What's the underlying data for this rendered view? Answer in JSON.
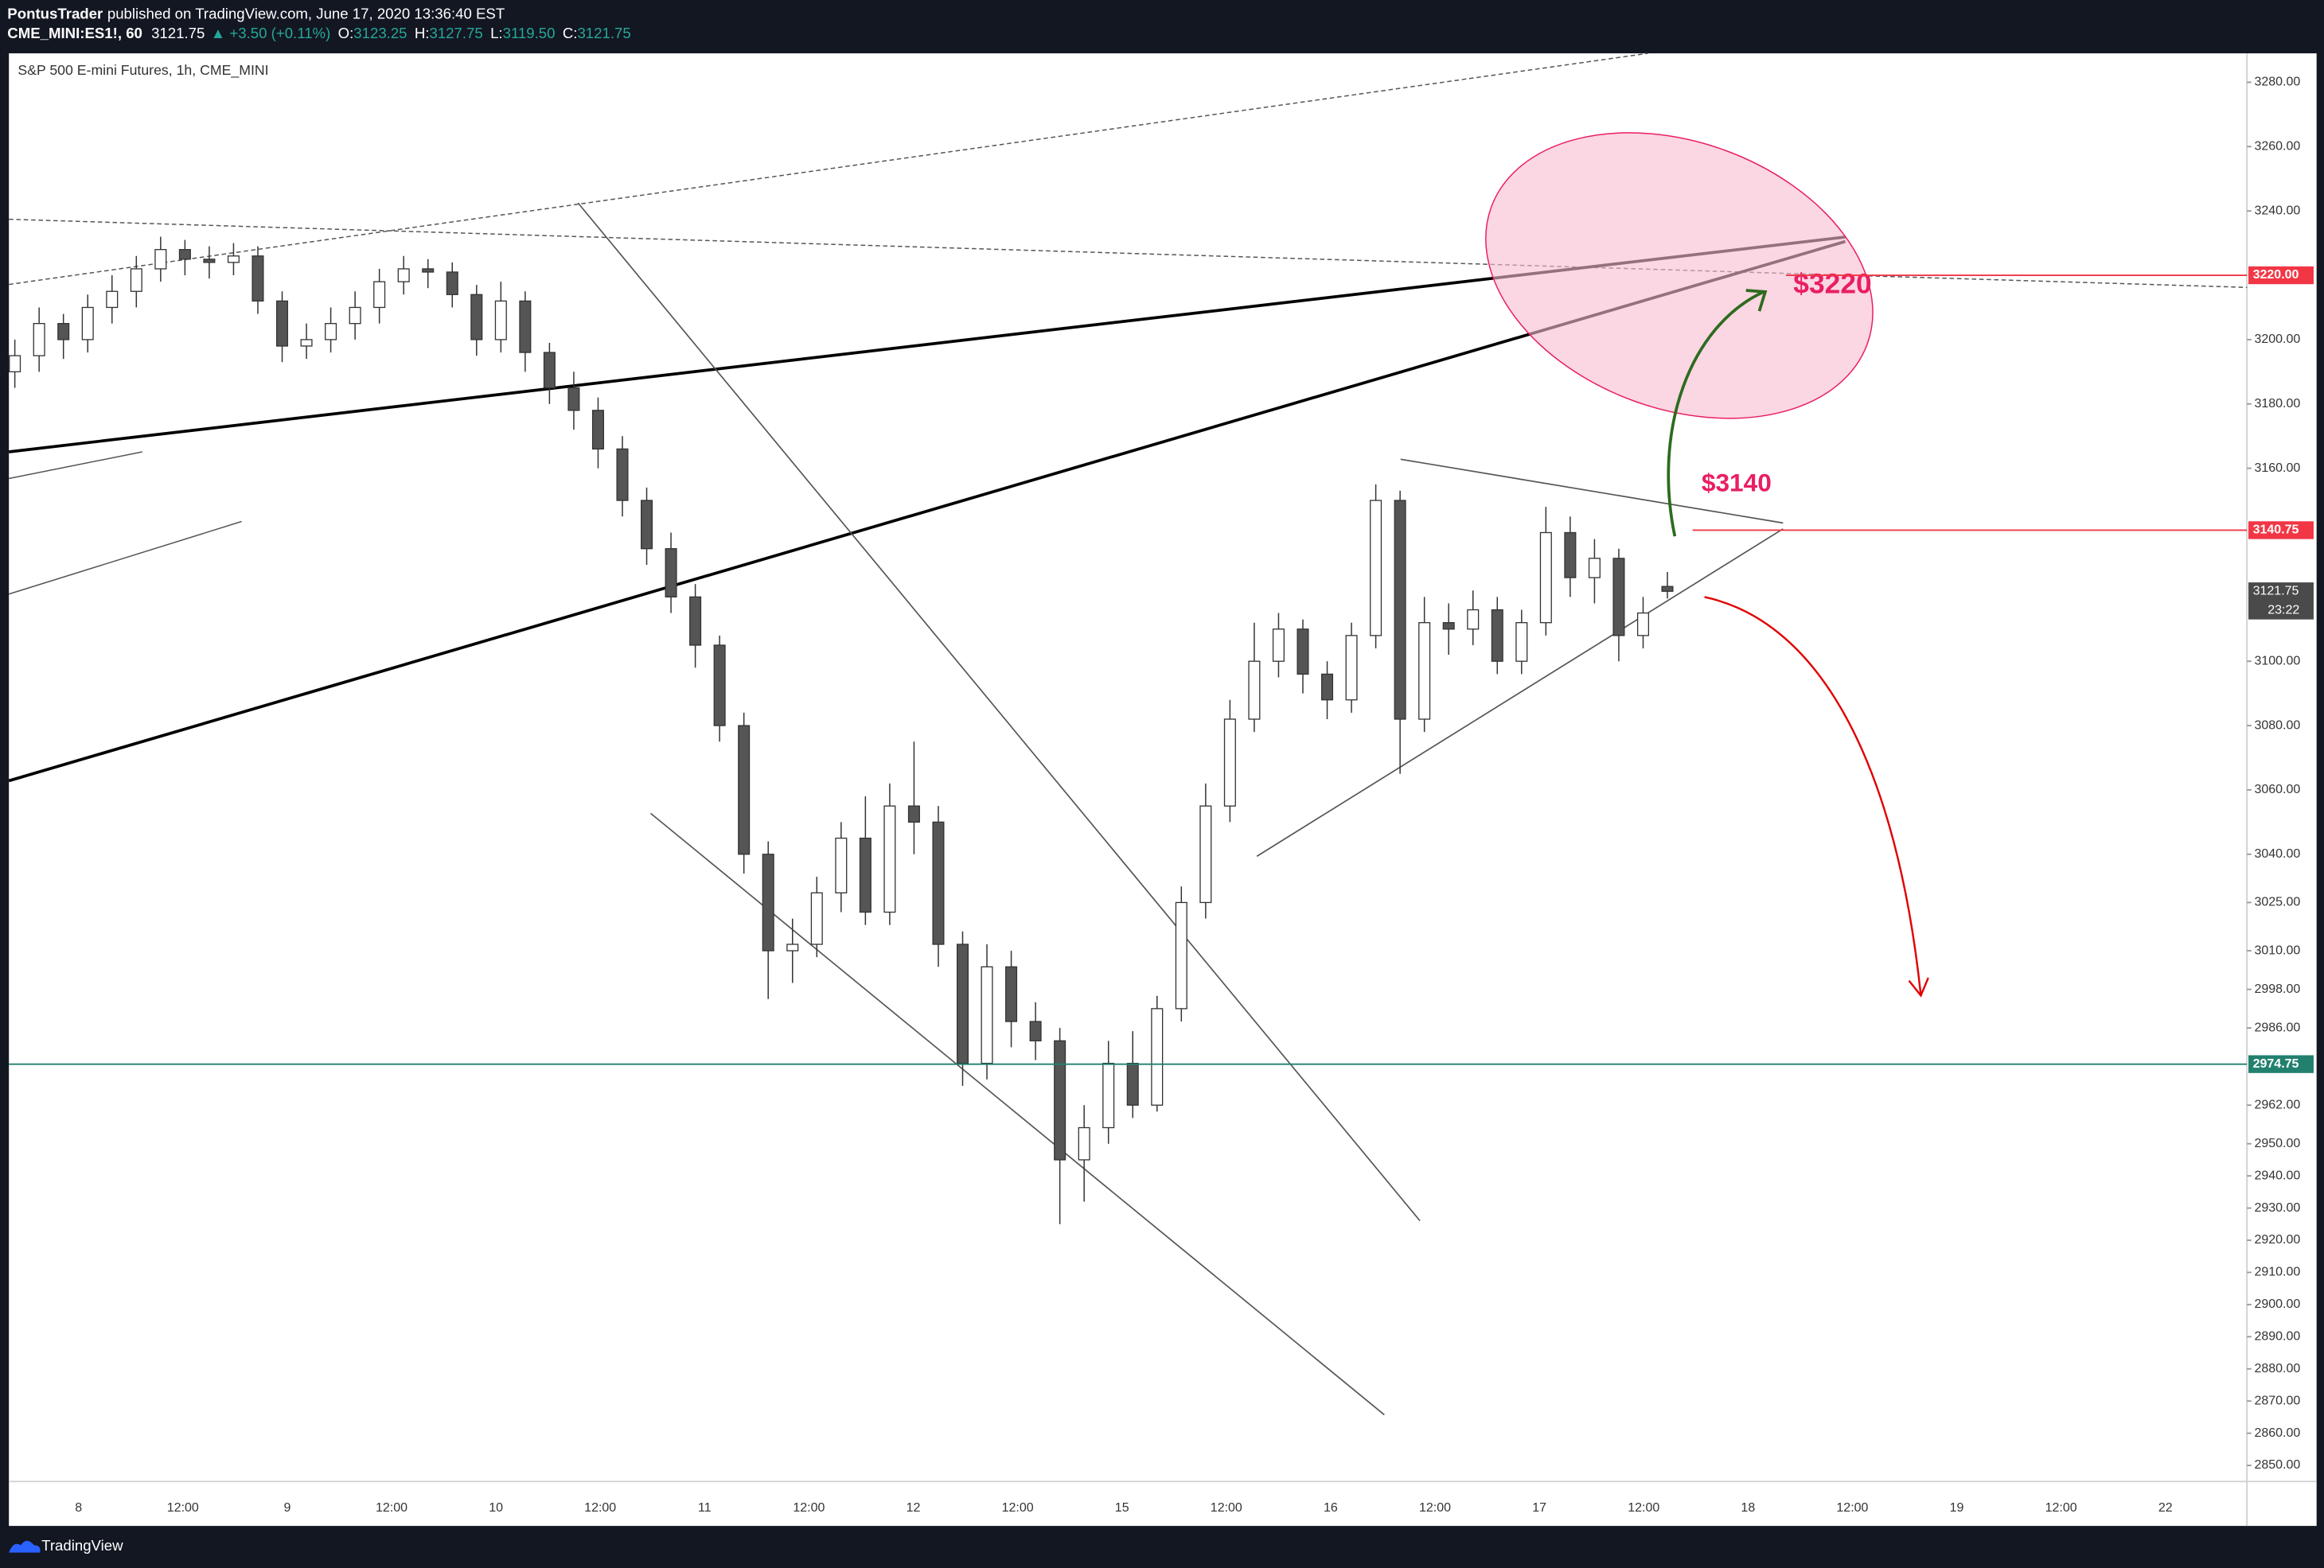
{
  "header": {
    "author": "PontusTrader",
    "published": "published on TradingView.com, June 17, 2020 13:36:40 EST",
    "symbol": "CME_MINI:ES1!, 60",
    "last": "3121.75",
    "change": "▲ +3.50 (+0.11%)",
    "ohlc": [
      {
        "label": "O:",
        "value": "3123.25"
      },
      {
        "label": "H:",
        "value": "3127.75"
      },
      {
        "label": "L:",
        "value": "3119.50"
      },
      {
        "label": "C:",
        "value": "3121.75"
      }
    ]
  },
  "footer": {
    "brand": "TradingView"
  },
  "chart_data": {
    "type": "candlestick",
    "title": "S&P 500 E-mini Futures, 1h, CME_MINI",
    "up_color": "#ffffff",
    "down_color": "#555555",
    "wick_color": "#333333",
    "open": [
      3190,
      3195,
      3205,
      3200,
      3210,
      3215,
      3222,
      3228,
      3225,
      3224,
      3226,
      3212,
      3198,
      3200,
      3205,
      3210,
      3218,
      3222,
      3221,
      3214,
      3200,
      3212,
      3196,
      3185,
      3178,
      3166,
      3150,
      3135,
      3120,
      3105,
      3080,
      3040,
      3010,
      3012,
      3028,
      3045,
      3022,
      3055,
      3050,
      3012,
      2975,
      3005,
      2988,
      2982,
      2945,
      2955,
      2975,
      2962,
      2992,
      3025,
      3055,
      3082,
      3100,
      3110,
      3096,
      3088,
      3108,
      3150,
      3082,
      3112,
      3110,
      3116,
      3100,
      3112,
      3140,
      3126,
      3132,
      3108,
      3123.25
    ],
    "high": [
      3200,
      3210,
      3208,
      3214,
      3220,
      3226,
      3232,
      3231,
      3229,
      3230,
      3229,
      3215,
      3205,
      3210,
      3215,
      3222,
      3226,
      3225,
      3224,
      3217,
      3218,
      3215,
      3199,
      3190,
      3182,
      3170,
      3154,
      3140,
      3124,
      3108,
      3084,
      3044,
      3020,
      3033,
      3050,
      3058,
      3062,
      3075,
      3055,
      3016,
      3012,
      3010,
      2994,
      2986,
      2962,
      2982,
      2985,
      2996,
      3030,
      3062,
      3088,
      3112,
      3115,
      3113,
      3100,
      3112,
      3155,
      3153,
      3120,
      3118,
      3122,
      3120,
      3116,
      3148,
      3145,
      3138,
      3135,
      3120,
      3127.75
    ],
    "low": [
      3185,
      3190,
      3194,
      3196,
      3205,
      3210,
      3218,
      3220,
      3219,
      3220,
      3208,
      3193,
      3194,
      3196,
      3200,
      3205,
      3214,
      3216,
      3210,
      3195,
      3196,
      3190,
      3180,
      3172,
      3160,
      3145,
      3130,
      3115,
      3098,
      3075,
      3034,
      2995,
      3000,
      3008,
      3022,
      3018,
      3018,
      3040,
      3005,
      2968,
      2970,
      2980,
      2976,
      2925,
      2932,
      2950,
      2958,
      2960,
      2988,
      3020,
      3050,
      3078,
      3095,
      3090,
      3082,
      3084,
      3104,
      3065,
      3078,
      3102,
      3105,
      3096,
      3096,
      3108,
      3120,
      3118,
      3100,
      3104,
      3119.5
    ],
    "close": [
      3195,
      3205,
      3200,
      3210,
      3215,
      3222,
      3228,
      3225,
      3224,
      3226,
      3212,
      3198,
      3200,
      3205,
      3210,
      3218,
      3222,
      3221,
      3214,
      3200,
      3212,
      3196,
      3185,
      3178,
      3166,
      3150,
      3135,
      3120,
      3105,
      3080,
      3040,
      3010,
      3012,
      3028,
      3045,
      3022,
      3055,
      3050,
      3012,
      2975,
      3005,
      2988,
      2982,
      2945,
      2955,
      2975,
      2962,
      2992,
      3025,
      3055,
      3082,
      3100,
      3110,
      3096,
      3088,
      3108,
      3150,
      3082,
      3112,
      3110,
      3116,
      3100,
      3112,
      3140,
      3126,
      3132,
      3108,
      3115,
      3121.75
    ],
    "x_labels": [
      "8",
      "12:00",
      "9",
      "12:00",
      "10",
      "12:00",
      "11",
      "12:00",
      "12",
      "12:00",
      "15",
      "12:00",
      "16",
      "12:00",
      "17",
      "12:00",
      "18",
      "12:00",
      "19",
      "12:00",
      "22"
    ],
    "ylim": [
      2845,
      3289
    ],
    "yticks": [
      {
        "value": 3280,
        "label": "3280.00"
      },
      {
        "value": 3260,
        "label": "3260.00"
      },
      {
        "value": 3240,
        "label": "3240.00"
      },
      {
        "value": 3200,
        "label": "3200.00"
      },
      {
        "value": 3180,
        "label": "3180.00"
      },
      {
        "value": 3160,
        "label": "3160.00"
      },
      {
        "value": 3100,
        "label": "3100.00"
      },
      {
        "value": 3080,
        "label": "3080.00"
      },
      {
        "value": 3060,
        "label": "3060.00"
      },
      {
        "value": 3040,
        "label": "3040.00"
      },
      {
        "value": 3025,
        "label": "3025.00"
      },
      {
        "value": 3010,
        "label": "3010.00"
      },
      {
        "value": 2998,
        "label": "2998.00"
      },
      {
        "value": 2986,
        "label": "2986.00"
      },
      {
        "value": 2962,
        "label": "2962.00"
      },
      {
        "value": 2950,
        "label": "2950.00"
      },
      {
        "value": 2940,
        "label": "2940.00"
      },
      {
        "value": 2930,
        "label": "2930.00"
      },
      {
        "value": 2920,
        "label": "2920.00"
      },
      {
        "value": 2910,
        "label": "2910.00"
      },
      {
        "value": 2900,
        "label": "2900.00"
      },
      {
        "value": 2890,
        "label": "2890.00"
      },
      {
        "value": 2880,
        "label": "2880.00"
      },
      {
        "value": 2870,
        "label": "2870.00"
      },
      {
        "value": 2860,
        "label": "2860.00"
      },
      {
        "value": 2850,
        "label": "2850.00"
      }
    ],
    "price_lines": [
      {
        "value": 3220,
        "label": "3220.00",
        "color": "#f23645"
      },
      {
        "value": 3140.75,
        "label": "3140.75",
        "color": "#f23645"
      },
      {
        "value": 2974.75,
        "label": "2974.75",
        "color": "#22806f"
      }
    ],
    "last_price": {
      "value": 3121.75,
      "label": "3121.75",
      "countdown": "23:22",
      "color": "#4a4a4a"
    },
    "annotations": [
      "$3220",
      "$3140"
    ]
  }
}
